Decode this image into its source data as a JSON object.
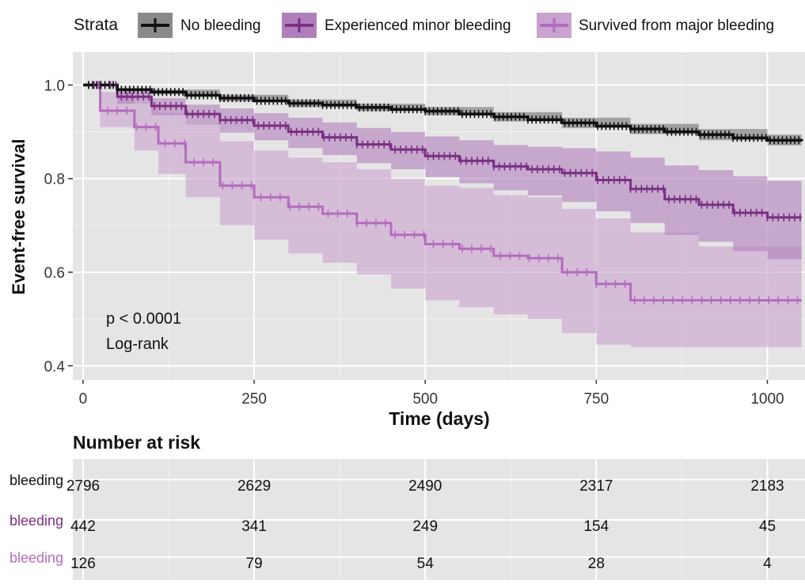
{
  "chart_data": {
    "type": "line",
    "subtype": "kaplan-meier survival curve with confidence bands",
    "legend": {
      "title": "Strata",
      "position": "top",
      "entries": [
        "No bleeding",
        "Experienced minor bleeding",
        "Survived from major bleeding"
      ]
    },
    "xlabel": "Time (days)",
    "ylabel": "Event-free survival",
    "xlim": [
      -15,
      1055
    ],
    "ylim": [
      0.37,
      1.07
    ],
    "xticks": [
      0,
      250,
      500,
      750,
      1000
    ],
    "yticks": [
      0.4,
      0.6,
      0.8,
      1.0
    ],
    "ytick_labels": [
      "0.4",
      "0.6",
      "0.8",
      "1.0"
    ],
    "grid": true,
    "annotation": [
      "p < 0.0001",
      "Log-rank"
    ],
    "series": [
      {
        "name": "No bleeding",
        "color": "#111111",
        "band_color": "#8a8a8a",
        "points": [
          [
            0,
            1.0
          ],
          [
            50,
            0.99
          ],
          [
            100,
            0.985
          ],
          [
            150,
            0.978
          ],
          [
            200,
            0.972
          ],
          [
            250,
            0.966
          ],
          [
            300,
            0.961
          ],
          [
            350,
            0.957
          ],
          [
            400,
            0.952
          ],
          [
            450,
            0.948
          ],
          [
            500,
            0.944
          ],
          [
            550,
            0.938
          ],
          [
            600,
            0.932
          ],
          [
            650,
            0.926
          ],
          [
            700,
            0.919
          ],
          [
            750,
            0.912
          ],
          [
            800,
            0.906
          ],
          [
            850,
            0.9
          ],
          [
            900,
            0.894
          ],
          [
            950,
            0.887
          ],
          [
            1000,
            0.882
          ],
          [
            1050,
            0.88
          ]
        ],
        "lower": [
          [
            0,
            1.0
          ],
          [
            100,
            0.98
          ],
          [
            200,
            0.965
          ],
          [
            300,
            0.953
          ],
          [
            400,
            0.944
          ],
          [
            500,
            0.935
          ],
          [
            600,
            0.922
          ],
          [
            700,
            0.908
          ],
          [
            800,
            0.895
          ],
          [
            900,
            0.882
          ],
          [
            1000,
            0.871
          ],
          [
            1050,
            0.868
          ]
        ],
        "upper": [
          [
            0,
            1.0
          ],
          [
            100,
            0.99
          ],
          [
            200,
            0.979
          ],
          [
            300,
            0.969
          ],
          [
            400,
            0.96
          ],
          [
            500,
            0.953
          ],
          [
            600,
            0.942
          ],
          [
            700,
            0.93
          ],
          [
            800,
            0.917
          ],
          [
            900,
            0.906
          ],
          [
            1000,
            0.894
          ],
          [
            1050,
            0.892
          ]
        ]
      },
      {
        "name": "Experienced minor bleeding",
        "color": "#7b2f84",
        "band_color": "#b07fba",
        "points": [
          [
            0,
            1.0
          ],
          [
            50,
            0.975
          ],
          [
            100,
            0.955
          ],
          [
            150,
            0.938
          ],
          [
            200,
            0.925
          ],
          [
            250,
            0.913
          ],
          [
            300,
            0.9
          ],
          [
            350,
            0.888
          ],
          [
            400,
            0.873
          ],
          [
            450,
            0.862
          ],
          [
            500,
            0.848
          ],
          [
            550,
            0.838
          ],
          [
            600,
            0.826
          ],
          [
            650,
            0.82
          ],
          [
            700,
            0.812
          ],
          [
            750,
            0.797
          ],
          [
            800,
            0.778
          ],
          [
            850,
            0.756
          ],
          [
            900,
            0.744
          ],
          [
            950,
            0.727
          ],
          [
            1000,
            0.717
          ],
          [
            1050,
            0.717
          ]
        ],
        "lower": [
          [
            0,
            1.0
          ],
          [
            50,
            0.96
          ],
          [
            100,
            0.935
          ],
          [
            150,
            0.915
          ],
          [
            200,
            0.898
          ],
          [
            250,
            0.882
          ],
          [
            300,
            0.865
          ],
          [
            350,
            0.85
          ],
          [
            400,
            0.833
          ],
          [
            450,
            0.82
          ],
          [
            500,
            0.803
          ],
          [
            550,
            0.79
          ],
          [
            600,
            0.775
          ],
          [
            650,
            0.764
          ],
          [
            700,
            0.75
          ],
          [
            750,
            0.73
          ],
          [
            800,
            0.705
          ],
          [
            850,
            0.68
          ],
          [
            900,
            0.665
          ],
          [
            950,
            0.645
          ],
          [
            1000,
            0.628
          ],
          [
            1050,
            0.628
          ]
        ],
        "upper": [
          [
            0,
            1.0
          ],
          [
            50,
            0.99
          ],
          [
            100,
            0.972
          ],
          [
            150,
            0.958
          ],
          [
            200,
            0.95
          ],
          [
            250,
            0.94
          ],
          [
            300,
            0.93
          ],
          [
            350,
            0.92
          ],
          [
            400,
            0.908
          ],
          [
            450,
            0.9
          ],
          [
            500,
            0.89
          ],
          [
            550,
            0.882
          ],
          [
            600,
            0.872
          ],
          [
            650,
            0.868
          ],
          [
            700,
            0.865
          ],
          [
            750,
            0.858
          ],
          [
            800,
            0.845
          ],
          [
            850,
            0.828
          ],
          [
            900,
            0.818
          ],
          [
            950,
            0.805
          ],
          [
            1000,
            0.795
          ],
          [
            1050,
            0.795
          ]
        ]
      },
      {
        "name": "Survived from major bleeding",
        "color": "#b46cbd",
        "band_color": "#c9a2cf",
        "points": [
          [
            0,
            1.0
          ],
          [
            25,
            0.945
          ],
          [
            75,
            0.91
          ],
          [
            110,
            0.875
          ],
          [
            150,
            0.835
          ],
          [
            200,
            0.785
          ],
          [
            250,
            0.76
          ],
          [
            300,
            0.74
          ],
          [
            350,
            0.725
          ],
          [
            400,
            0.705
          ],
          [
            450,
            0.68
          ],
          [
            500,
            0.66
          ],
          [
            550,
            0.65
          ],
          [
            600,
            0.635
          ],
          [
            650,
            0.63
          ],
          [
            700,
            0.6
          ],
          [
            750,
            0.575
          ],
          [
            800,
            0.54
          ],
          [
            900,
            0.54
          ],
          [
            1050,
            0.54
          ]
        ],
        "lower": [
          [
            0,
            1.0
          ],
          [
            25,
            0.91
          ],
          [
            75,
            0.86
          ],
          [
            110,
            0.81
          ],
          [
            150,
            0.76
          ],
          [
            200,
            0.7
          ],
          [
            250,
            0.67
          ],
          [
            300,
            0.64
          ],
          [
            350,
            0.62
          ],
          [
            400,
            0.595
          ],
          [
            450,
            0.565
          ],
          [
            500,
            0.54
          ],
          [
            550,
            0.525
          ],
          [
            600,
            0.51
          ],
          [
            650,
            0.5
          ],
          [
            700,
            0.47
          ],
          [
            750,
            0.445
          ],
          [
            800,
            0.44
          ],
          [
            1050,
            0.44
          ]
        ],
        "upper": [
          [
            0,
            1.0
          ],
          [
            25,
            0.985
          ],
          [
            75,
            0.96
          ],
          [
            110,
            0.94
          ],
          [
            150,
            0.915
          ],
          [
            200,
            0.88
          ],
          [
            250,
            0.86
          ],
          [
            300,
            0.845
          ],
          [
            350,
            0.835
          ],
          [
            400,
            0.82
          ],
          [
            450,
            0.8
          ],
          [
            500,
            0.785
          ],
          [
            550,
            0.78
          ],
          [
            600,
            0.765
          ],
          [
            650,
            0.76
          ],
          [
            700,
            0.735
          ],
          [
            750,
            0.715
          ],
          [
            800,
            0.685
          ],
          [
            900,
            0.655
          ],
          [
            1050,
            0.655
          ]
        ]
      }
    ],
    "risk_table": {
      "title": "Number at risk",
      "times": [
        0,
        250,
        500,
        750,
        1000
      ],
      "rows": [
        {
          "label": "bleeding",
          "color": "#111111",
          "values": [
            "2796",
            "2629",
            "2490",
            "2317",
            "2183"
          ]
        },
        {
          "label": "bleeding",
          "color": "#7b2f84",
          "values": [
            "442",
            "341",
            "249",
            "154",
            "45"
          ]
        },
        {
          "label": "bleeding",
          "color": "#b46cbd",
          "values": [
            "126",
            "79",
            "54",
            "28",
            "4"
          ]
        }
      ]
    }
  }
}
